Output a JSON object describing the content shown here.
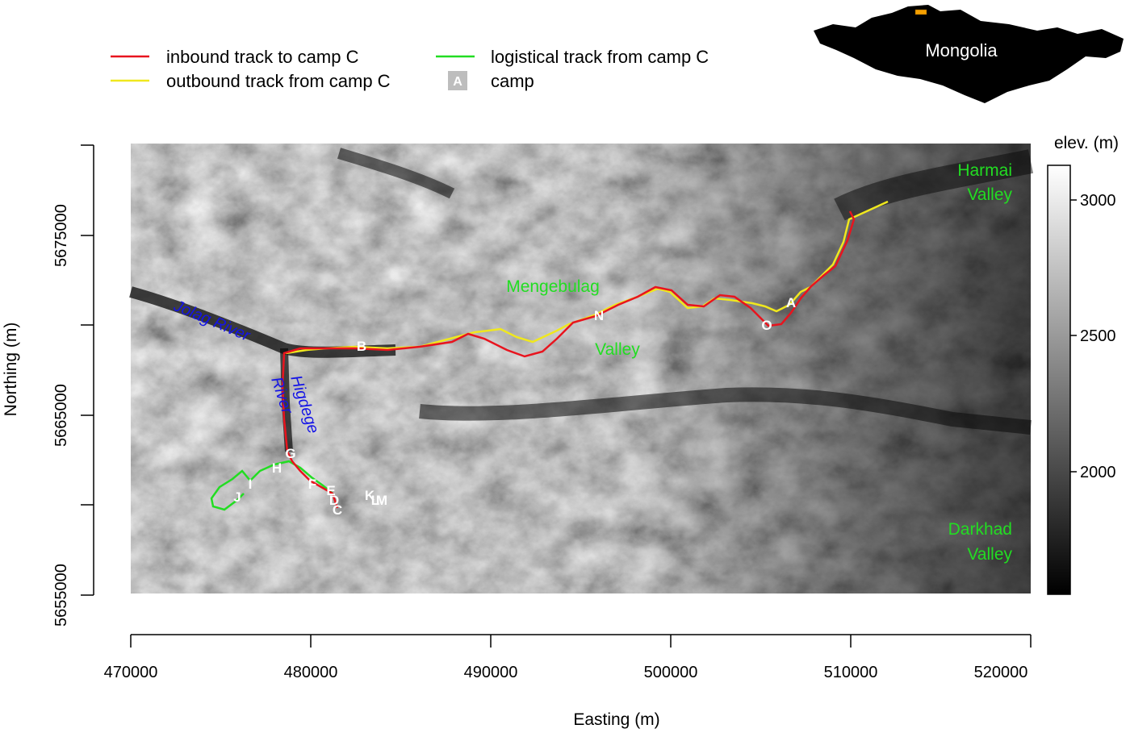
{
  "legend": {
    "inbound": "inbound track to camp C",
    "outbound": "outbound track from camp C",
    "logistical": "logistical track from camp C",
    "camp_symbol": "A",
    "camp": "camp"
  },
  "inset": {
    "label": "Mongolia"
  },
  "axes": {
    "x_title": "Easting (m)",
    "y_title": "Northing (m)",
    "x_ticks": [
      "470000",
      "480000",
      "490000",
      "500000",
      "510000",
      "520000"
    ],
    "y_ticks": [
      "5655000",
      "5665000",
      "5675000"
    ]
  },
  "colorbar": {
    "title": "elev. (m)",
    "ticks": [
      "3000",
      "2500",
      "2000"
    ]
  },
  "valleys": {
    "harmai_line1": "Harmai",
    "harmai_line2": "Valley",
    "mengebulag": "Mengebulag",
    "mengebulag_valley": "Valley",
    "darkhad_line1": "Darkhad",
    "darkhad_line2": "Valley"
  },
  "rivers": {
    "jolag": "Jolag River",
    "higdege": "Higdege",
    "higdege_river": "River"
  },
  "camps": [
    "A",
    "B",
    "C",
    "D",
    "E",
    "F",
    "G",
    "H",
    "I",
    "J",
    "K",
    "L",
    "M",
    "N",
    "O"
  ],
  "colors": {
    "inbound": "#e8141e",
    "outbound": "#f0e81e",
    "logistical": "#22dd22",
    "river_label": "#1414e6",
    "valley_label": "#22dd22",
    "inset_marker": "#f5a000"
  }
}
